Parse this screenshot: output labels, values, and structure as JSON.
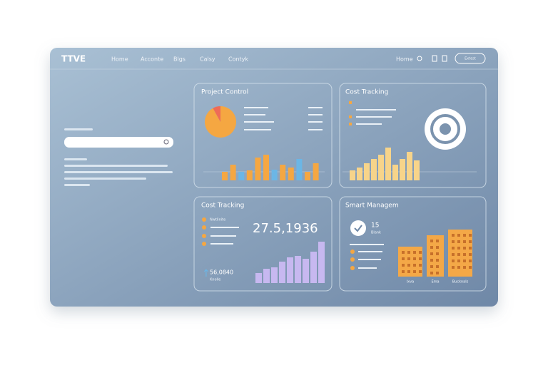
{
  "header": {
    "logo": "TTVE",
    "nav": [
      "Home",
      "Acconte",
      "Blgs",
      "Calsy",
      "Contyk"
    ],
    "right_link": "Home",
    "button": "Extest"
  },
  "panels": [
    {
      "title": "Project Control",
      "pie": [
        92,
        8
      ],
      "pie_colors": [
        "#f5a742",
        "#ef6b57"
      ],
      "bars": [
        12,
        22,
        12,
        14,
        32,
        36,
        15,
        22,
        18,
        30,
        12,
        24
      ],
      "bar_colors": [
        "#f5a742",
        "#f5a742",
        "#6bb6e6",
        "#f5a742",
        "#f5a742",
        "#f5a742",
        "#6bb6e6",
        "#f5a742",
        "#f5a742",
        "#6bb6e6",
        "#f5a742",
        "#f5a742"
      ]
    },
    {
      "title": "Cost Tracking",
      "bars": [
        14,
        18,
        24,
        30,
        36,
        46,
        22,
        30,
        40,
        28
      ],
      "color": "#f7d48a"
    },
    {
      "title": "Cost Tracking",
      "big_number": "27.5,1936",
      "items": [
        "Nwtlinite",
        "Knotle",
        "Kiwtta"
      ],
      "stat": "56,0840",
      "stat_label": "Knolle",
      "bars": [
        14,
        20,
        22,
        30,
        36,
        38,
        34,
        44,
        58
      ],
      "color": "#c7b8f0"
    },
    {
      "title": "Smart Managem",
      "stat": "15",
      "stat_label": "Blank",
      "bars": [
        42,
        58,
        66
      ],
      "bar_labels": [
        "Ixva",
        "Ema",
        "Bucknals"
      ],
      "color": "#f4a847"
    }
  ]
}
